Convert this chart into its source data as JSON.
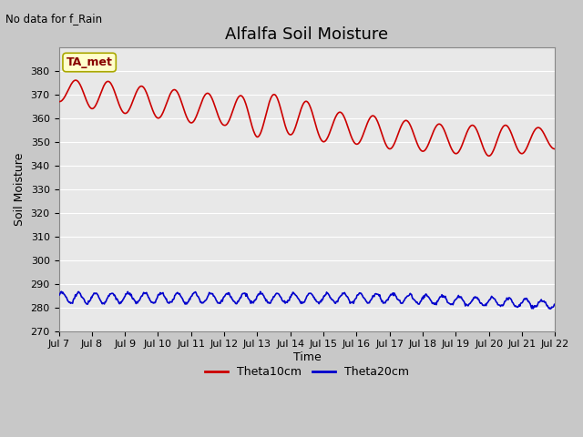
{
  "title": "Alfalfa Soil Moisture",
  "top_left_text": "No data for f_Rain",
  "ylabel": "Soil Moisture",
  "xlabel": "Time",
  "annotation_label": "TA_met",
  "annotation_bg": "#ffffcc",
  "annotation_border": "#aaa800",
  "ylim": [
    270,
    390
  ],
  "yticks": [
    270,
    280,
    290,
    300,
    310,
    320,
    330,
    340,
    350,
    360,
    370,
    380
  ],
  "x_start_day": 0,
  "x_end_day": 15,
  "xtick_positions": [
    0,
    1,
    2,
    3,
    4,
    5,
    6,
    7,
    8,
    9,
    10,
    11,
    12,
    13,
    14,
    15
  ],
  "xtick_labels": [
    "Jul 7",
    "Jul 8",
    "Jul 9",
    "Jul 10",
    "Jul 11",
    "Jul 12",
    "Jul 13",
    "Jul 14",
    "Jul 15",
    "Jul 16",
    "Jul 17",
    "Jul 18",
    "Jul 19",
    "Jul 20",
    "Jul 21",
    "Jul 22"
  ],
  "red_line_color": "#cc0000",
  "blue_line_color": "#0000cc",
  "legend_labels": [
    "Theta10cm",
    "Theta20cm"
  ],
  "fig_bg_color": "#c8c8c8",
  "plot_bg_color": "#e8e8e8",
  "title_fontsize": 13,
  "axis_label_fontsize": 9,
  "tick_fontsize": 8,
  "legend_fontsize": 9
}
